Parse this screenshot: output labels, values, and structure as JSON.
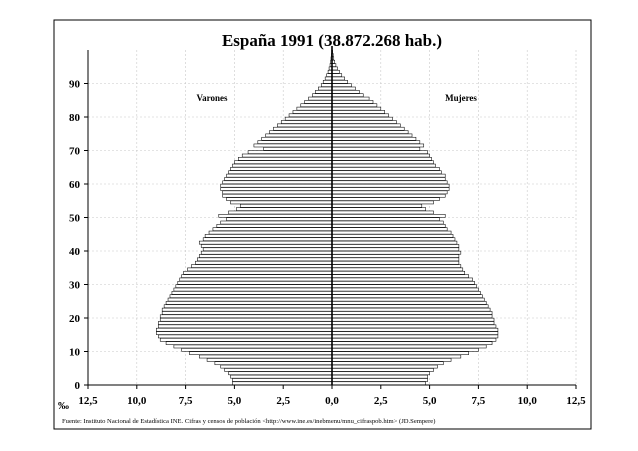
{
  "chart_data": {
    "type": "bar",
    "orientation": "horizontal-diverging",
    "title": "España 1991 (38.872.268 hab.)",
    "unit_label": "‰",
    "source": "Fuente: Instituto Nacional de Estadística INE. Cifras y censos de población <http://www.ine.es/inebmenu/mnu_cifraspob.htm> (JD.Sempere)",
    "x_ticks": [
      "12,5",
      "10,0",
      "7,5",
      "5,0",
      "2,5",
      "0,0",
      "2,5",
      "5,0",
      "7,5",
      "10,0",
      "12,5"
    ],
    "y_ticks": [
      "0",
      "10",
      "20",
      "30",
      "40",
      "50",
      "60",
      "70",
      "80",
      "90"
    ],
    "xlim": [
      -12.5,
      12.5
    ],
    "ylim": [
      0,
      100
    ],
    "grid": true,
    "x": [
      0,
      1,
      2,
      3,
      4,
      5,
      6,
      7,
      8,
      9,
      10,
      11,
      12,
      13,
      14,
      15,
      16,
      17,
      18,
      19,
      20,
      21,
      22,
      23,
      24,
      25,
      26,
      27,
      28,
      29,
      30,
      31,
      32,
      33,
      34,
      35,
      36,
      37,
      38,
      39,
      40,
      41,
      42,
      43,
      44,
      45,
      46,
      47,
      48,
      49,
      50,
      51,
      52,
      53,
      54,
      55,
      56,
      57,
      58,
      59,
      60,
      61,
      62,
      63,
      64,
      65,
      66,
      67,
      68,
      69,
      70,
      71,
      72,
      73,
      74,
      75,
      76,
      77,
      78,
      79,
      80,
      81,
      82,
      83,
      84,
      85,
      86,
      87,
      88,
      89,
      90,
      91,
      92,
      93,
      94,
      95,
      96,
      97,
      98,
      99
    ],
    "series": [
      {
        "name": "Varones",
        "values": [
          5.1,
          5.1,
          5.2,
          5.3,
          5.5,
          5.7,
          6.0,
          6.4,
          6.8,
          7.3,
          7.7,
          8.1,
          8.5,
          8.8,
          8.9,
          9.0,
          9.0,
          8.9,
          8.9,
          8.8,
          8.8,
          8.7,
          8.7,
          8.6,
          8.5,
          8.4,
          8.3,
          8.2,
          8.1,
          8.0,
          7.9,
          7.8,
          7.7,
          7.6,
          7.4,
          7.2,
          7.0,
          6.9,
          6.8,
          6.7,
          6.6,
          6.7,
          6.8,
          6.6,
          6.5,
          6.3,
          6.1,
          5.9,
          5.7,
          5.4,
          5.8,
          5.3,
          4.9,
          4.7,
          5.2,
          5.4,
          5.6,
          5.6,
          5.7,
          5.7,
          5.6,
          5.5,
          5.4,
          5.3,
          5.2,
          5.1,
          5.0,
          4.8,
          4.6,
          4.3,
          3.5,
          4.0,
          3.8,
          3.6,
          3.4,
          3.2,
          3.0,
          2.8,
          2.6,
          2.4,
          2.2,
          2.0,
          1.8,
          1.6,
          1.4,
          1.2,
          1.0,
          0.85,
          0.7,
          0.55,
          0.45,
          0.35,
          0.27,
          0.2,
          0.15,
          0.1,
          0.07,
          0.05,
          0.03,
          0.02
        ]
      },
      {
        "name": "Mujeres",
        "values": [
          4.8,
          4.9,
          4.9,
          5.0,
          5.2,
          5.4,
          5.7,
          6.1,
          6.6,
          7.0,
          7.5,
          7.9,
          8.2,
          8.4,
          8.5,
          8.5,
          8.5,
          8.4,
          8.3,
          8.3,
          8.2,
          8.2,
          8.1,
          8.0,
          7.9,
          7.8,
          7.7,
          7.6,
          7.5,
          7.4,
          7.3,
          7.2,
          7.0,
          6.8,
          6.7,
          6.6,
          6.5,
          6.5,
          6.5,
          6.6,
          6.5,
          6.5,
          6.4,
          6.3,
          6.2,
          6.1,
          5.9,
          5.8,
          5.7,
          5.5,
          5.8,
          5.2,
          4.8,
          4.6,
          5.2,
          5.5,
          5.8,
          5.9,
          6.0,
          6.0,
          5.9,
          5.8,
          5.8,
          5.6,
          5.5,
          5.3,
          5.2,
          5.1,
          5.0,
          4.9,
          4.5,
          4.7,
          4.5,
          4.3,
          4.1,
          3.9,
          3.7,
          3.5,
          3.3,
          3.1,
          2.9,
          2.7,
          2.5,
          2.3,
          2.1,
          1.9,
          1.6,
          1.4,
          1.2,
          1.0,
          0.8,
          0.65,
          0.5,
          0.38,
          0.28,
          0.2,
          0.14,
          0.09,
          0.06,
          0.03
        ]
      }
    ]
  }
}
